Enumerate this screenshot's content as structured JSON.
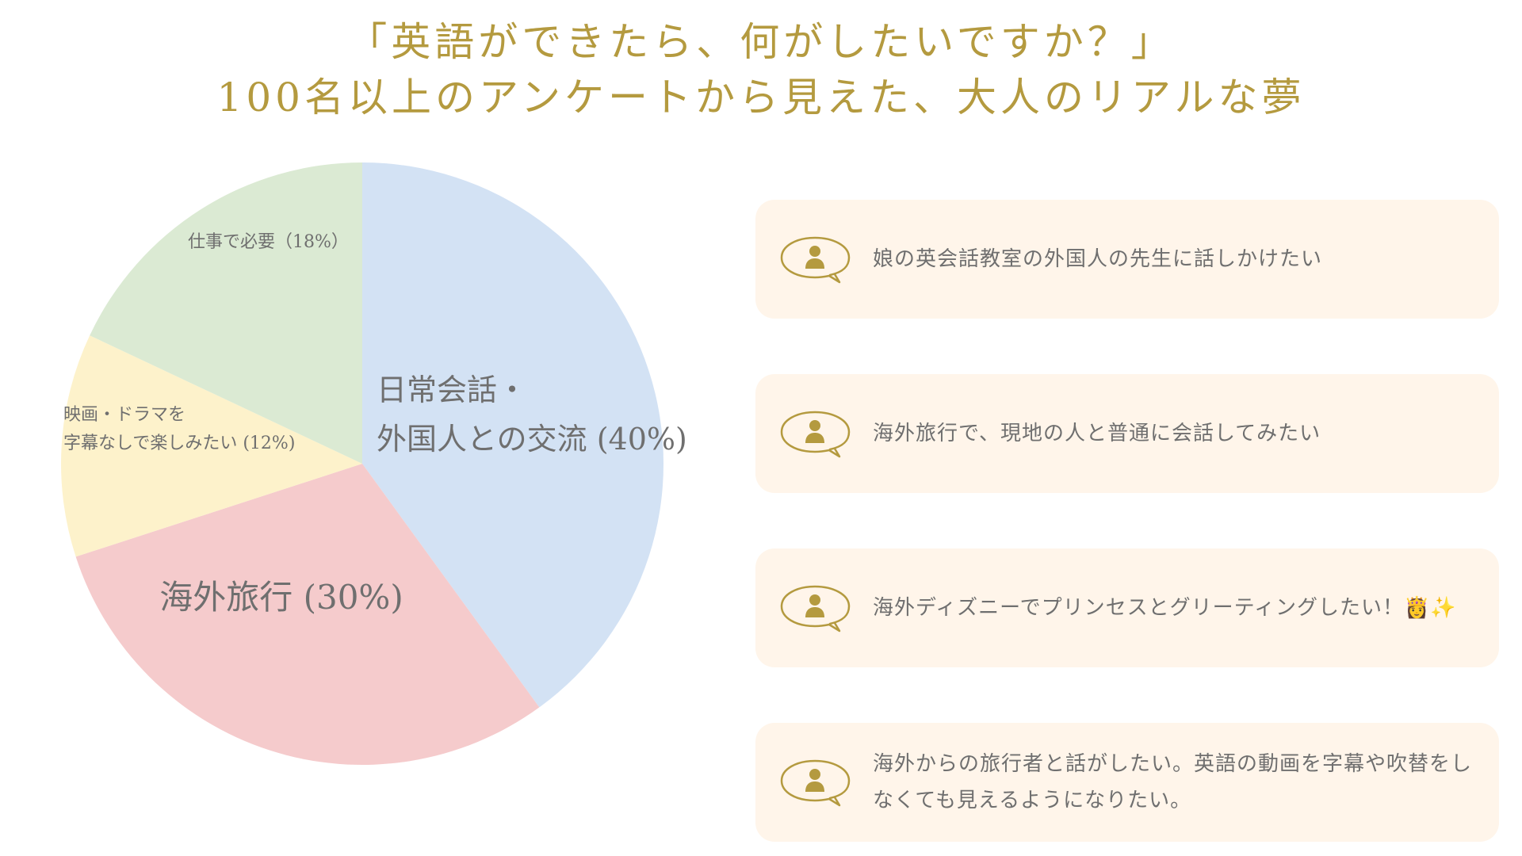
{
  "header": {
    "line1": "「英語ができたら、何がしたいですか？」",
    "line2": "100名以上のアンケートから見えた、大人のリアルな夢"
  },
  "colors": {
    "title": "#b49a3f",
    "card_bg": "#fff5ea",
    "icon": "#b49a3f",
    "text": "#6f6f6f"
  },
  "chart_data": {
    "type": "pie",
    "slices": [
      {
        "label_lines": [
          "日常会話・",
          "外国人との交流 (40%)"
        ],
        "value": 40,
        "color": "#d3e2f4"
      },
      {
        "label_lines": [
          "海外旅行 (30%)"
        ],
        "value": 30,
        "color": "#f5cbcc"
      },
      {
        "label_lines": [
          "映画・ドラマを",
          "字幕なしで楽しみたい (12%)"
        ],
        "value": 12,
        "color": "#fdf2cb"
      },
      {
        "label_lines": [
          "仕事で必要（18%）"
        ],
        "value": 18,
        "color": "#dbead3"
      }
    ]
  },
  "comments": [
    {
      "icon": "speech-bubble-person-icon",
      "text": "娘の英会話教室の外国人の先生に話しかけたい"
    },
    {
      "icon": "speech-bubble-person-icon",
      "text": "海外旅行で、現地の人と普通に会話してみたい"
    },
    {
      "icon": "speech-bubble-person-icon",
      "text": "海外ディズニーでプリンセスとグリーティングしたい！👸✨"
    },
    {
      "icon": "speech-bubble-person-icon",
      "text": "海外からの旅行者と話がしたい。英語の動画を字幕や吹替をしなくても見えるようになりたい。"
    }
  ]
}
